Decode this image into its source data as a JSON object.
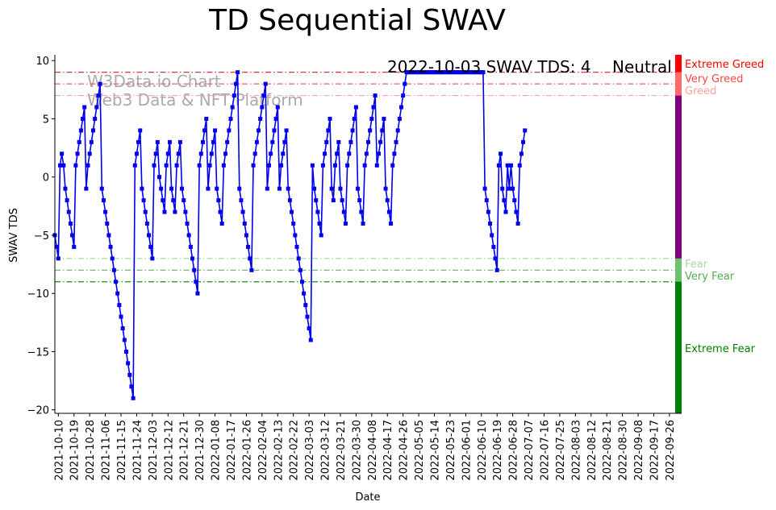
{
  "chart_data": {
    "type": "line",
    "title": "TD Sequential SWAV",
    "xlabel": "Date",
    "ylabel": "SWAV TDS",
    "ylim": [
      -20.3,
      10.5
    ],
    "xlim": [
      "2021-10-08",
      "2022-10-03"
    ],
    "grid": false,
    "y_ticks": [
      10,
      5,
      0,
      -5,
      -10,
      -15,
      -20
    ],
    "x_ticks": [
      "2021-10-10",
      "2021-10-19",
      "2021-10-28",
      "2021-11-06",
      "2021-11-15",
      "2021-11-24",
      "2021-12-03",
      "2021-12-12",
      "2021-12-21",
      "2021-12-30",
      "2022-01-08",
      "2022-01-17",
      "2022-01-26",
      "2022-02-04",
      "2022-02-13",
      "2022-02-22",
      "2022-03-03",
      "2022-03-12",
      "2022-03-21",
      "2022-03-30",
      "2022-04-08",
      "2022-04-17",
      "2022-04-26",
      "2022-05-05",
      "2022-05-14",
      "2022-05-23",
      "2022-06-01",
      "2022-06-10",
      "2022-06-19",
      "2022-06-28",
      "2022-07-07",
      "2022-07-16",
      "2022-07-25",
      "2022-08-03",
      "2022-08-12",
      "2022-08-21",
      "2022-08-30",
      "2022-09-08",
      "2022-09-17",
      "2022-09-26"
    ],
    "series": [
      {
        "color": "#0000ee",
        "marker": "square",
        "start_date": "2021-10-08",
        "values": [
          -5,
          -6,
          -7,
          1,
          2,
          1,
          -1,
          -2,
          -3,
          -4,
          -5,
          -6,
          1,
          2,
          3,
          4,
          5,
          6,
          -1,
          1,
          2,
          3,
          4,
          5,
          6,
          7,
          8,
          -1,
          -2,
          -3,
          -4,
          -5,
          -6,
          -7,
          -8,
          -9,
          -10,
          -11,
          -12,
          -13,
          -14,
          -15,
          -16,
          -17,
          -18,
          -19,
          1,
          2,
          3,
          4,
          -1,
          -2,
          -3,
          -4,
          -5,
          -6,
          -7,
          1,
          2,
          3,
          0,
          -1,
          -2,
          -3,
          1,
          2,
          3,
          -1,
          -2,
          -3,
          1,
          2,
          3,
          -1,
          -2,
          -3,
          -4,
          -5,
          -6,
          -7,
          -8,
          -9,
          -10,
          1,
          2,
          3,
          4,
          5,
          -1,
          1,
          2,
          3,
          4,
          -1,
          -2,
          -3,
          -4,
          1,
          2,
          3,
          4,
          5,
          6,
          7,
          8,
          9,
          -1,
          -2,
          -3,
          -4,
          -5,
          -6,
          -7,
          -8,
          1,
          2,
          3,
          4,
          5,
          6,
          7,
          8,
          -1,
          1,
          2,
          3,
          4,
          5,
          6,
          -1,
          1,
          2,
          3,
          4,
          -1,
          -2,
          -3,
          -4,
          -5,
          -6,
          -7,
          -8,
          -9,
          -10,
          -11,
          -12,
          -13,
          -14,
          1,
          -1,
          -2,
          -3,
          -4,
          -5,
          1,
          2,
          3,
          4,
          5,
          -1,
          -2,
          1,
          2,
          3,
          -1,
          -2,
          -3,
          -4,
          1,
          2,
          3,
          4,
          5,
          6,
          -1,
          -2,
          -3,
          -4,
          1,
          2,
          3,
          4,
          5,
          6,
          7,
          1,
          2,
          3,
          4,
          5,
          -1,
          -2,
          -3,
          -4,
          1,
          2,
          3,
          4,
          5,
          6,
          7,
          8,
          9,
          9,
          9,
          9,
          9,
          9,
          9,
          9,
          9,
          9,
          9,
          9,
          9,
          9,
          9,
          9,
          9,
          9,
          9,
          9,
          9,
          9,
          9,
          9,
          9,
          9,
          9,
          9,
          9,
          9,
          9,
          9,
          9,
          9,
          9,
          9,
          9,
          9,
          9,
          9,
          9,
          9,
          9,
          9,
          9,
          -1,
          -2,
          -3,
          -4,
          -5,
          -6,
          -7,
          -8,
          1,
          2,
          -1,
          -2,
          -3,
          1,
          -1,
          1,
          -1,
          -2,
          -3,
          -4,
          1,
          2,
          3,
          4
        ]
      }
    ],
    "hlines": [
      {
        "y": 9,
        "color": "#e31a1c",
        "style": "dashdot"
      },
      {
        "y": 8,
        "color": "#f06060",
        "style": "dashdot"
      },
      {
        "y": 7,
        "color": "#f5a3a3",
        "style": "dashdot"
      },
      {
        "y": -7,
        "color": "#a8d8a8",
        "style": "dashdot"
      },
      {
        "y": -8,
        "color": "#5cb85c",
        "style": "dashdot"
      },
      {
        "y": -9,
        "color": "#1a8a1a",
        "style": "dashdot"
      }
    ],
    "zone_labels": [
      {
        "text": "Extreme Greed",
        "color": "#ff0000"
      },
      {
        "text": "Very Greed",
        "color": "#ff4444"
      },
      {
        "text": "Greed",
        "color": "#ff9f9f"
      },
      {
        "text": "Fear",
        "color": "#a8d8a8"
      },
      {
        "text": "Very Fear",
        "color": "#4caf50"
      },
      {
        "text": "Extreme Fear",
        "color": "#008000"
      }
    ],
    "side_bar": [
      {
        "from": 10.5,
        "to": 9,
        "color": "#ff0000"
      },
      {
        "from": 9,
        "to": 7,
        "color": "#ff6b6b"
      },
      {
        "from": 7,
        "to": -7,
        "color": "#800080"
      },
      {
        "from": -7,
        "to": -9,
        "color": "#6cc36c"
      },
      {
        "from": -9,
        "to": -20.3,
        "color": "#008000"
      }
    ],
    "annotation": {
      "text": "2022-10-03 SWAV TDS: 4",
      "status": "Neutral",
      "status_color": "#800080"
    },
    "watermark": [
      "W3Data.io Chart",
      "Web3 Data & NFT Platform"
    ]
  }
}
